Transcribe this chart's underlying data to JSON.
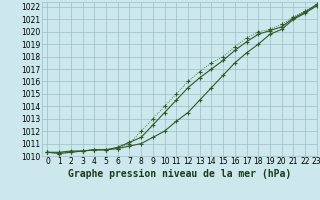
{
  "background_color": "#cce8ec",
  "grid_color": "#99bfc8",
  "line_color": "#2d5a27",
  "xlim": [
    -0.5,
    23
  ],
  "ylim": [
    1010,
    1022.4
  ],
  "xticks": [
    0,
    1,
    2,
    3,
    4,
    5,
    6,
    7,
    8,
    9,
    10,
    11,
    12,
    13,
    14,
    15,
    16,
    17,
    18,
    19,
    20,
    21,
    22,
    23
  ],
  "yticks": [
    1010,
    1011,
    1012,
    1013,
    1014,
    1015,
    1016,
    1017,
    1018,
    1019,
    1020,
    1021,
    1022
  ],
  "series1_x": [
    0,
    1,
    2,
    3,
    4,
    5,
    6,
    7,
    8,
    9,
    10,
    11,
    12,
    13,
    14,
    15,
    16,
    17,
    18,
    19,
    20,
    21,
    22,
    23
  ],
  "series1_y": [
    1010.3,
    1010.3,
    1010.4,
    1010.4,
    1010.5,
    1010.5,
    1010.6,
    1010.8,
    1011.0,
    1011.5,
    1012.0,
    1012.8,
    1013.5,
    1014.5,
    1015.5,
    1016.5,
    1017.5,
    1018.3,
    1019.0,
    1019.8,
    1020.2,
    1021.0,
    1021.5,
    1022.1
  ],
  "series2_x": [
    0,
    1,
    2,
    3,
    4,
    5,
    6,
    7,
    8,
    9,
    10,
    11,
    12,
    13,
    14,
    15,
    16,
    17,
    18,
    19,
    20,
    21,
    22,
    23
  ],
  "series2_y": [
    1010.3,
    1010.2,
    1010.3,
    1010.4,
    1010.5,
    1010.5,
    1010.7,
    1011.1,
    1011.5,
    1012.5,
    1013.5,
    1014.5,
    1015.5,
    1016.3,
    1017.0,
    1017.7,
    1018.5,
    1019.2,
    1019.8,
    1020.1,
    1020.4,
    1021.1,
    1021.6,
    1022.2
  ],
  "series3_x": [
    0,
    1,
    2,
    3,
    4,
    5,
    6,
    7,
    8,
    9,
    10,
    11,
    12,
    13,
    14,
    15,
    16,
    17,
    18,
    19,
    20,
    21,
    22,
    23
  ],
  "series3_y": [
    1010.3,
    1010.2,
    1010.3,
    1010.4,
    1010.5,
    1010.5,
    1010.6,
    1011.0,
    1012.0,
    1013.0,
    1014.0,
    1015.0,
    1016.0,
    1016.8,
    1017.5,
    1018.0,
    1018.8,
    1019.5,
    1020.0,
    1020.2,
    1020.6,
    1021.2,
    1021.7,
    1022.2
  ],
  "xlabel": "Graphe pression niveau de la mer (hPa)",
  "tick_fontsize": 5.5,
  "xlabel_fontsize": 7
}
